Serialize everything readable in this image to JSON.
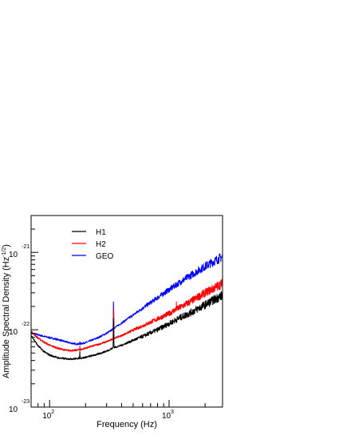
{
  "chart_data": {
    "type": "line",
    "xlabel": "Frequency (Hz)",
    "ylabel": "Amplitude Spectral Density (Hz",
    "ylabel_exponent": "-1/2",
    "ylabel_close": ")",
    "xscale": "log",
    "yscale": "log",
    "xlim": [
      70,
      2800
    ],
    "ylim": [
      1e-23,
      3e-21
    ],
    "grid": false,
    "legend_position": "top-left",
    "x_ticks": [
      {
        "value": 100,
        "base": "10",
        "exp": "2"
      },
      {
        "value": 1000,
        "base": "10",
        "exp": "3"
      }
    ],
    "y_ticks": [
      {
        "value": 1e-23,
        "base": "10",
        "exp": "-23"
      },
      {
        "value": 1e-22,
        "base": "10",
        "exp": "-22"
      },
      {
        "value": 1e-21,
        "base": "10",
        "exp": "-21"
      }
    ],
    "series": [
      {
        "name": "H1",
        "color": "#000000",
        "x": [
          70,
          80,
          90,
          100,
          120,
          140,
          160,
          178,
          179,
          180,
          181,
          185,
          200,
          250,
          300,
          340,
          342,
          344,
          346,
          350,
          400,
          500,
          600,
          800,
          1000,
          1200,
          1500,
          2000,
          2500,
          2800
        ],
        "y": [
          8.5e-23,
          6.2e-23,
          5.2e-23,
          4.7e-23,
          4.3e-23,
          4.2e-23,
          4.2e-23,
          4.3e-23,
          5.3e-23,
          4.4e-23,
          4.3e-23,
          4.3e-23,
          4.4e-23,
          4.8e-23,
          5.3e-23,
          5.8e-23,
          1.4e-22,
          1e-22,
          6e-23,
          5.9e-23,
          6.3e-23,
          7.3e-23,
          8.2e-23,
          1e-22,
          1.2e-22,
          1.4e-22,
          1.65e-22,
          2.1e-22,
          2.55e-22,
          2.8e-22
        ]
      },
      {
        "name": "H2",
        "color": "#ff0000",
        "x": [
          70,
          80,
          90,
          100,
          120,
          140,
          160,
          178,
          179,
          180,
          181,
          200,
          250,
          300,
          340,
          342,
          344,
          346,
          350,
          400,
          500,
          600,
          800,
          1000,
          1150,
          1151,
          1153,
          1200,
          1500,
          2000,
          2500,
          2800
        ],
        "y": [
          9.5e-23,
          7.8e-23,
          6.9e-23,
          6.3e-23,
          5.7e-23,
          5.4e-23,
          5.4e-23,
          5.5e-23,
          6.2e-23,
          5.5e-23,
          5.5e-23,
          5.8e-23,
          6.4e-23,
          7e-23,
          7.6e-23,
          1.9e-22,
          1.5e-22,
          8e-23,
          7.8e-23,
          8.4e-23,
          9.9e-23,
          1.12e-22,
          1.38e-22,
          1.62e-22,
          1.85e-22,
          2.3e-22,
          1.86e-22,
          1.9e-22,
          2.3e-22,
          3e-22,
          3.6e-22,
          4e-22
        ]
      },
      {
        "name": "GEO",
        "color": "#0000ff",
        "x": [
          70,
          80,
          90,
          100,
          120,
          140,
          160,
          178,
          179,
          180,
          181,
          200,
          250,
          300,
          340,
          342,
          344,
          346,
          350,
          400,
          500,
          600,
          800,
          1000,
          1200,
          1500,
          2000,
          2500,
          2800
        ],
        "y": [
          9e-23,
          8.6e-23,
          8.2e-23,
          7.9e-23,
          7.4e-23,
          6.9e-23,
          6.6e-23,
          6.5e-23,
          7e-23,
          6.5e-23,
          6.6e-23,
          6.8e-23,
          7.8e-23,
          9e-23,
          1.02e-22,
          2.3e-22,
          1.8e-22,
          1.05e-22,
          1.06e-22,
          1.22e-22,
          1.55e-22,
          1.9e-22,
          2.6e-22,
          3.3e-22,
          4e-22,
          5e-22,
          6.6e-22,
          8e-22,
          8.8e-22
        ]
      }
    ]
  }
}
